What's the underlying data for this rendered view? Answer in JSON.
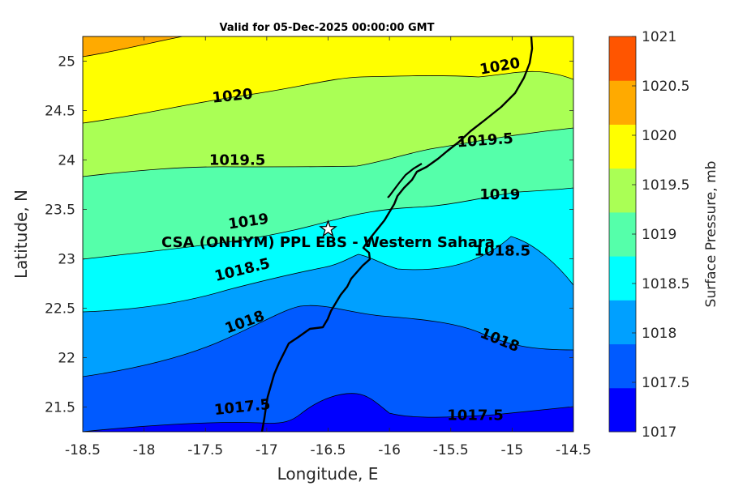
{
  "title": "Valid for 05-Dec-2025 00:00:00 GMT",
  "xlabel": "Longitude, E",
  "ylabel": "Latitude, N",
  "colorbar_label": "Surface Pressure, mb",
  "xlim": [
    -18.5,
    -14.5
  ],
  "ylim": [
    21.25,
    25.25
  ],
  "x_ticks": [
    -18.5,
    -18,
    -17.5,
    -17,
    -16.5,
    -16,
    -15.5,
    -15,
    -14.5
  ],
  "x_tick_labels": [
    "-18.5",
    "-18",
    "-17.5",
    "-17",
    "-16.5",
    "-16",
    "-15.5",
    "-15",
    "-14.5"
  ],
  "y_ticks": [
    21.5,
    22,
    22.5,
    23,
    23.5,
    24,
    24.5,
    25
  ],
  "y_tick_labels": [
    "21.5",
    "22",
    "22.5",
    "23",
    "23.5",
    "24",
    "24.5",
    "25"
  ],
  "colorbar": {
    "levels": [
      1017,
      1017.5,
      1018,
      1018.5,
      1019,
      1019.5,
      1020,
      1020.5,
      1021
    ],
    "labels": [
      "1017",
      "1017.5",
      "1018",
      "1018.5",
      "1019",
      "1019.5",
      "1020",
      "1020.5",
      "1021"
    ],
    "colors": [
      "#0000ff",
      "#005aff",
      "#00a0ff",
      "#00ffff",
      "#55ffaa",
      "#aaff55",
      "#ffff00",
      "#ffaa00",
      "#ff5500"
    ]
  },
  "contour_labels": [
    {
      "text": "1020",
      "lon": -17.28,
      "lat": 24.65,
      "angle": -6
    },
    {
      "text": "1020",
      "lon": -15.1,
      "lat": 24.95,
      "angle": -10
    },
    {
      "text": "1019.5",
      "lon": -17.24,
      "lat": 24.0,
      "angle": 0
    },
    {
      "text": "1019.5",
      "lon": -15.22,
      "lat": 24.2,
      "angle": -4
    },
    {
      "text": "1019",
      "lon": -17.15,
      "lat": 23.38,
      "angle": -8
    },
    {
      "text": "1019",
      "lon": -15.1,
      "lat": 23.65,
      "angle": 0
    },
    {
      "text": "1018.5",
      "lon": -17.2,
      "lat": 22.89,
      "angle": -14
    },
    {
      "text": "1018.5",
      "lon": -15.08,
      "lat": 23.08,
      "angle": 0
    },
    {
      "text": "1018",
      "lon": -17.18,
      "lat": 22.36,
      "angle": -20
    },
    {
      "text": "1018",
      "lon": -15.1,
      "lat": 22.18,
      "angle": 22
    },
    {
      "text": "1017.5",
      "lon": -17.2,
      "lat": 21.5,
      "angle": -6
    },
    {
      "text": "1017.5",
      "lon": -15.3,
      "lat": 21.42,
      "angle": 0
    }
  ],
  "station": {
    "name": "CSA (ONHYM) PPL EBS  - Western Sahara",
    "lon": -16.5,
    "lat": 23.3
  }
}
